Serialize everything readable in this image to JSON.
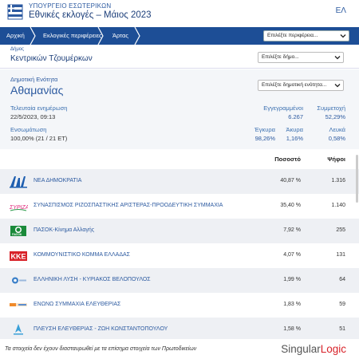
{
  "header": {
    "ministry": "ΥΠΟΥΡΓΕΙΟ ΕΣΩΤΕΡΙΚΩΝ",
    "title": "Εθνικές εκλογές – Μάιος 2023",
    "language": "ΕΛ"
  },
  "breadcrumb": {
    "items": [
      "Αρχική",
      "Εκλογικές περιφέρειες",
      "Άρτας"
    ]
  },
  "navbar": {
    "region_select_placeholder": "Επιλέξτε περιφέρεια..."
  },
  "municipality": {
    "label": "Δήμος",
    "name": "Κεντρικών Τζουμέρκων",
    "select_placeholder": "Επιλέξτε δήμο..."
  },
  "unit": {
    "label": "Δημοτική Ενότητα",
    "name": "Αθαμανίας",
    "select_placeholder": "Επιλέξτε δημοτική ενότητα..."
  },
  "stats": {
    "last_update_label": "Τελευταία ενημέρωση",
    "last_update_value": "22/5/2023, 09:13",
    "integration_label": "Ενσωμάτωση",
    "integration_value": "100,00% (21 / 21 ΕΤ)",
    "registered_label": "Εγγεγραμμένοι",
    "registered_value": "6.267",
    "turnout_label": "Συμμετοχή",
    "turnout_value": "52,29%",
    "valid_label": "Έγκυρα",
    "valid_value": "98,26%",
    "invalid_label": "Άκυρα",
    "invalid_value": "1,16%",
    "blank_label": "Λευκά",
    "blank_value": "0,58%"
  },
  "table": {
    "col_percent": "Ποσοστό",
    "col_votes": "Ψήφοι",
    "rows": [
      {
        "party": "ΝΕΑ ΔΗΜΟΚΡΑΤΙΑ",
        "percent": "40,87 %",
        "votes": "1.316",
        "logo": "nd-logo",
        "color": "#1f5fb0"
      },
      {
        "party": "ΣΥΝΑΣΠΙΣΜΟΣ ΡΙΖΟΣΠΑΣΤΙΚΗΣ ΑΡΙΣΤΕΡΑΣ-ΠΡΟΟΔΕΥΤΙΚΗ ΣΥΜΜΑΧΙΑ",
        "percent": "35,40 %",
        "votes": "1.140",
        "logo": "syriza-logo",
        "color": "#e0287a"
      },
      {
        "party": "ΠΑΣΟΚ-Κίνημα Αλλαγής",
        "percent": "7,92 %",
        "votes": "255",
        "logo": "pasok-logo",
        "color": "#1a8a3a"
      },
      {
        "party": "ΚΟΜΜΟΥΝΙΣΤΙΚΟ ΚΟΜΜΑ ΕΛΛΑΔΑΣ",
        "percent": "4,07 %",
        "votes": "131",
        "logo": "kke-logo",
        "color": "#d8232a"
      },
      {
        "party": "ΕΛΛΗΝΙΚΗ ΛΥΣΗ - ΚΥΡΙΑΚΟΣ ΒΕΛΟΠΟΥΛΟΣ",
        "percent": "1,99 %",
        "votes": "64",
        "logo": "elliniki-lysi-logo",
        "color": "#3a7fc8"
      },
      {
        "party": "ΕΝΩΝΩ ΣΥΜΜΑΧΙΑ ΕΛΕΥΘΕΡΙΑΣ",
        "percent": "1,83 %",
        "votes": "59",
        "logo": "enono-logo",
        "color": "#f08a2a"
      },
      {
        "party": "ΠΛΕΥΣΗ ΕΛΕΥΘΕΡΙΑΣ - ΖΩΗ ΚΩΝΣΤΑΝΤΟΠΟΥΛΟΥ",
        "percent": "1,58 %",
        "votes": "51",
        "logo": "plefsi-logo",
        "color": "#3aa0d8"
      }
    ]
  },
  "footer": {
    "disclaimer": "Τα στοιχεία δεν έχουν διασταυρωθεί με τα επίσημα στοιχεία των Πρωτοδικείων",
    "brand_part1": "Singular",
    "brand_part2": "Logic"
  }
}
